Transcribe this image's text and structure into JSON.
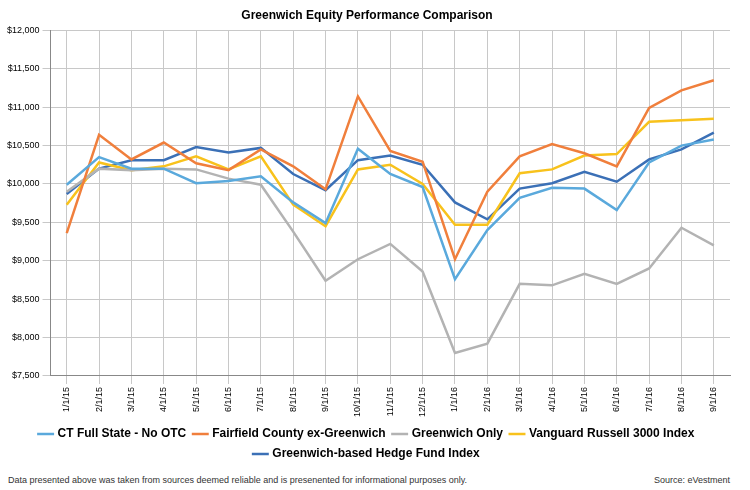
{
  "chart_data": {
    "type": "line",
    "title": "Greenwich Equity Performance Comparison",
    "categories": [
      "1/1/15",
      "2/1/15",
      "3/1/15",
      "4/1/15",
      "5/1/15",
      "6/1/15",
      "7/1/15",
      "8/1/15",
      "9/1/15",
      "10/1/15",
      "11/1/15",
      "12/1/15",
      "1/1/16",
      "2/1/16",
      "3/1/16",
      "4/1/16",
      "5/1/16",
      "6/1/16",
      "7/1/16",
      "8/1/16",
      "9/1/16"
    ],
    "series": [
      {
        "name": "CT Full State - No OTC",
        "color": "#5aa9dc",
        "values": [
          9990,
          10350,
          10200,
          10200,
          10010,
          10040,
          10100,
          9760,
          9490,
          10460,
          10130,
          9960,
          8760,
          9400,
          9820,
          9950,
          9940,
          9660,
          10280,
          10500,
          10580
        ]
      },
      {
        "name": "Fairfield County ex-Greenwich",
        "color": "#f07f3c",
        "values": [
          9360,
          10640,
          10320,
          10540,
          10270,
          10180,
          10450,
          10230,
          9930,
          11140,
          10430,
          10290,
          9020,
          9900,
          10360,
          10520,
          10400,
          10230,
          10990,
          11220,
          11350
        ]
      },
      {
        "name": "Greenwich Only",
        "color": "#b3b3b3",
        "values": [
          9900,
          10200,
          10180,
          10200,
          10190,
          10070,
          9990,
          9380,
          8740,
          9020,
          9220,
          8860,
          7800,
          7920,
          8700,
          8680,
          8830,
          8700,
          8900,
          9430,
          9200
        ]
      },
      {
        "name": "Vanguard Russell 3000 Index",
        "color": "#f8c21c",
        "values": [
          9730,
          10280,
          10180,
          10230,
          10360,
          10190,
          10360,
          9730,
          9450,
          10190,
          10250,
          10000,
          9470,
          9470,
          10140,
          10190,
          10370,
          10390,
          10810,
          10830,
          10850
        ]
      },
      {
        "name": "Greenwich-based Hedge Fund Index",
        "color": "#3b70b6",
        "values": [
          9870,
          10200,
          10310,
          10310,
          10480,
          10410,
          10470,
          10130,
          9920,
          10310,
          10370,
          10250,
          9760,
          9540,
          9940,
          10010,
          10160,
          10030,
          10320,
          10450,
          10670
        ]
      }
    ],
    "ylim": [
      7500,
      12000
    ],
    "yticks": [
      {
        "value": 7500,
        "label": "$7,500"
      },
      {
        "value": 8000,
        "label": "$8,000"
      },
      {
        "value": 8500,
        "label": "$8,500"
      },
      {
        "value": 9000,
        "label": "$9,000"
      },
      {
        "value": 9500,
        "label": "$9,500"
      },
      {
        "value": 10000,
        "label": "$10,000"
      },
      {
        "value": 10500,
        "label": "$10,500"
      },
      {
        "value": 11000,
        "label": "$11,000"
      },
      {
        "value": 11500,
        "label": "$11,500"
      },
      {
        "value": 12000,
        "label": "$12,000"
      }
    ],
    "grid": true,
    "legend": "bottom",
    "annotations": [
      "Data presented above was taken from sources deemed reliable and is presenented for informational purposes only.",
      "Source: eVestment"
    ]
  }
}
